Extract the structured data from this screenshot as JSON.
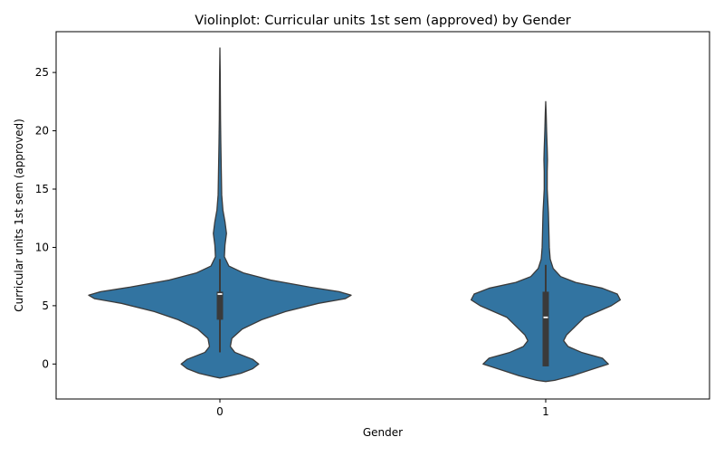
{
  "chart_data": {
    "type": "violin",
    "title": "Violinplot: Curricular units 1st sem (approved) by Gender",
    "xlabel": "Gender",
    "ylabel": "Curricular units 1st sem (approved)",
    "categories": [
      "0",
      "1"
    ],
    "ylim": [
      -3,
      28.5
    ],
    "yticks": [
      0,
      5,
      10,
      15,
      20,
      25
    ],
    "grid": false,
    "colors": {
      "fill": "#3274a1",
      "edge": "#3a3a3a",
      "box": "#3a3a3a",
      "median": "#ffffff"
    },
    "violins": [
      {
        "category": "0",
        "range": [
          -1.2,
          27.1
        ],
        "box": {
          "q1": 3.8,
          "median": 6,
          "q3": 6.2,
          "whisker_low": 1,
          "whisker_high": 9
        },
        "density_profile": [
          [
            -1.2,
            0.0
          ],
          [
            -1.1,
            0.02
          ],
          [
            -0.8,
            0.07
          ],
          [
            -0.4,
            0.11
          ],
          [
            0.0,
            0.13
          ],
          [
            0.4,
            0.11
          ],
          [
            1.0,
            0.05
          ],
          [
            1.5,
            0.035
          ],
          [
            2.2,
            0.04
          ],
          [
            3.0,
            0.075
          ],
          [
            3.8,
            0.14
          ],
          [
            4.5,
            0.22
          ],
          [
            5.2,
            0.33
          ],
          [
            5.6,
            0.42
          ],
          [
            5.9,
            0.44
          ],
          [
            6.2,
            0.4
          ],
          [
            6.6,
            0.3
          ],
          [
            7.2,
            0.17
          ],
          [
            7.8,
            0.08
          ],
          [
            8.4,
            0.03
          ],
          [
            9.2,
            0.015
          ],
          [
            10.2,
            0.017
          ],
          [
            11.2,
            0.022
          ],
          [
            12.2,
            0.017
          ],
          [
            13.2,
            0.01
          ],
          [
            14.5,
            0.006
          ],
          [
            16.0,
            0.005
          ],
          [
            17.5,
            0.004
          ],
          [
            19.0,
            0.003
          ],
          [
            21.0,
            0.002
          ],
          [
            23.0,
            0.0015
          ],
          [
            25.0,
            0.001
          ],
          [
            27.1,
            0.0
          ]
        ]
      },
      {
        "category": "1",
        "range": [
          -1.5,
          22.5
        ],
        "box": {
          "q1": -0.2,
          "median": 4,
          "q3": 6.2,
          "whisker_low": -0.2,
          "whisker_high": 8.5
        },
        "density_profile": [
          [
            -1.5,
            0.0
          ],
          [
            -1.4,
            0.03
          ],
          [
            -1.0,
            0.09
          ],
          [
            -0.5,
            0.15
          ],
          [
            0.0,
            0.21
          ],
          [
            0.5,
            0.19
          ],
          [
            1.0,
            0.12
          ],
          [
            1.5,
            0.075
          ],
          [
            2.0,
            0.06
          ],
          [
            2.5,
            0.07
          ],
          [
            3.0,
            0.09
          ],
          [
            4.0,
            0.13
          ],
          [
            5.0,
            0.22
          ],
          [
            5.5,
            0.25
          ],
          [
            6.0,
            0.24
          ],
          [
            6.5,
            0.19
          ],
          [
            7.0,
            0.1
          ],
          [
            7.5,
            0.05
          ],
          [
            8.2,
            0.025
          ],
          [
            9.0,
            0.015
          ],
          [
            10.0,
            0.012
          ],
          [
            11.0,
            0.011
          ],
          [
            12.0,
            0.01
          ],
          [
            13.0,
            0.009
          ],
          [
            14.0,
            0.007
          ],
          [
            15.0,
            0.005
          ],
          [
            16.5,
            0.005
          ],
          [
            17.5,
            0.006
          ],
          [
            18.5,
            0.005
          ],
          [
            20.0,
            0.003
          ],
          [
            21.5,
            0.0015
          ],
          [
            22.5,
            0.0
          ]
        ]
      }
    ]
  }
}
